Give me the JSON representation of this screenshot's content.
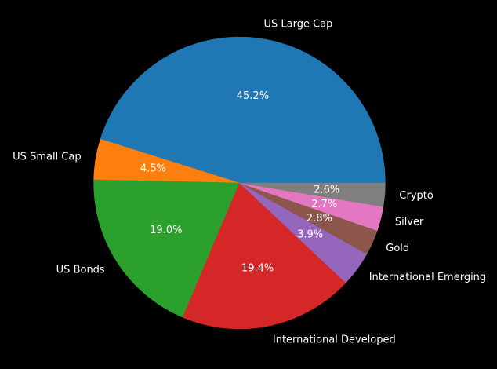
{
  "chart_data": {
    "type": "pie",
    "title": "",
    "start_angle_deg": 0,
    "direction": "counterclockwise",
    "slices": [
      {
        "label": "US Large Cap",
        "value": 45.2,
        "pct_label": "45.2%",
        "color": "#1f77b4"
      },
      {
        "label": "US Small Cap",
        "value": 4.5,
        "pct_label": "4.5%",
        "color": "#ff7f0e"
      },
      {
        "label": "US Bonds",
        "value": 19.0,
        "pct_label": "19.0%",
        "color": "#2ca02c"
      },
      {
        "label": "International Developed",
        "value": 19.4,
        "pct_label": "19.4%",
        "color": "#d62728"
      },
      {
        "label": "International Emerging",
        "value": 3.9,
        "pct_label": "3.9%",
        "color": "#9467bd"
      },
      {
        "label": "Gold",
        "value": 2.8,
        "pct_label": "2.8%",
        "color": "#8c564b"
      },
      {
        "label": "Silver",
        "value": 2.7,
        "pct_label": "2.7%",
        "color": "#e377c2"
      },
      {
        "label": "Crypto",
        "value": 2.6,
        "pct_label": "2.6%",
        "color": "#7f7f7f"
      }
    ],
    "background": "#000000",
    "text_color": "#ffffff"
  }
}
